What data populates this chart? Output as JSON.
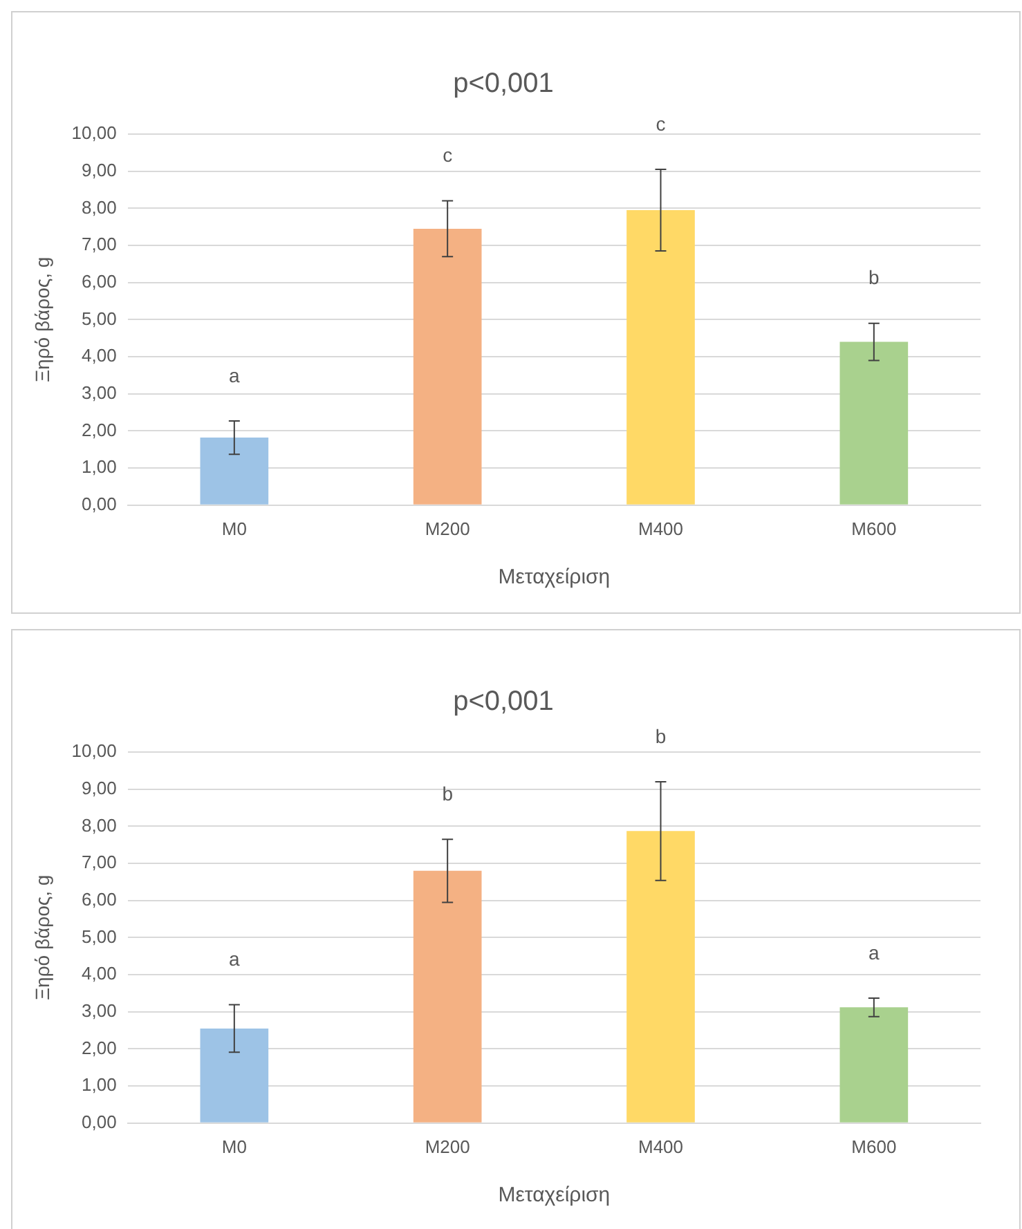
{
  "chart_data": [
    {
      "type": "bar",
      "title": "p<0,001",
      "xlabel": "Μεταχείριση",
      "ylabel": "Ξηρό βάρος, g",
      "categories": [
        "M0",
        "M200",
        "M400",
        "M600"
      ],
      "values": [
        1.82,
        7.45,
        7.95,
        4.4
      ],
      "colors": [
        "#9dc3e6",
        "#f4b183",
        "#ffd966",
        "#a9d18e"
      ],
      "errors": [
        0.45,
        0.75,
        1.1,
        0.5
      ],
      "ylim": [
        0,
        10
      ],
      "yticks": [
        {
          "value": 0,
          "label": "0,00"
        },
        {
          "value": 1,
          "label": "1,00"
        },
        {
          "value": 2,
          "label": "2,00"
        },
        {
          "value": 3,
          "label": "3,00"
        },
        {
          "value": 4,
          "label": "4,00"
        },
        {
          "value": 5,
          "label": "5,00"
        },
        {
          "value": 6,
          "label": "6,00"
        },
        {
          "value": 7,
          "label": "7,00"
        },
        {
          "value": 8,
          "label": "8,00"
        },
        {
          "value": 9,
          "label": "9,00"
        },
        {
          "value": 10,
          "label": "10,00"
        }
      ],
      "grid": "y",
      "legend": false,
      "annotations": [
        "a",
        "c",
        "c",
        "b"
      ]
    },
    {
      "type": "bar",
      "title": "p<0,001",
      "xlabel": "Μεταχείριση",
      "ylabel": "Ξηρό βάρος, g",
      "categories": [
        "M0",
        "M200",
        "M400",
        "M600"
      ],
      "values": [
        2.55,
        6.8,
        7.87,
        3.12
      ],
      "colors": [
        "#9dc3e6",
        "#f4b183",
        "#ffd966",
        "#a9d18e"
      ],
      "errors": [
        0.64,
        0.85,
        1.33,
        0.25
      ],
      "ylim": [
        0,
        10
      ],
      "yticks": [
        {
          "value": 0,
          "label": "0,00"
        },
        {
          "value": 1,
          "label": "1,00"
        },
        {
          "value": 2,
          "label": "2,00"
        },
        {
          "value": 3,
          "label": "3,00"
        },
        {
          "value": 4,
          "label": "4,00"
        },
        {
          "value": 5,
          "label": "5,00"
        },
        {
          "value": 6,
          "label": "6,00"
        },
        {
          "value": 7,
          "label": "7,00"
        },
        {
          "value": 8,
          "label": "8,00"
        },
        {
          "value": 9,
          "label": "9,00"
        },
        {
          "value": 10,
          "label": "10,00"
        }
      ],
      "grid": "y",
      "legend": false,
      "annotations": [
        "a",
        "b",
        "b",
        "a"
      ]
    }
  ]
}
